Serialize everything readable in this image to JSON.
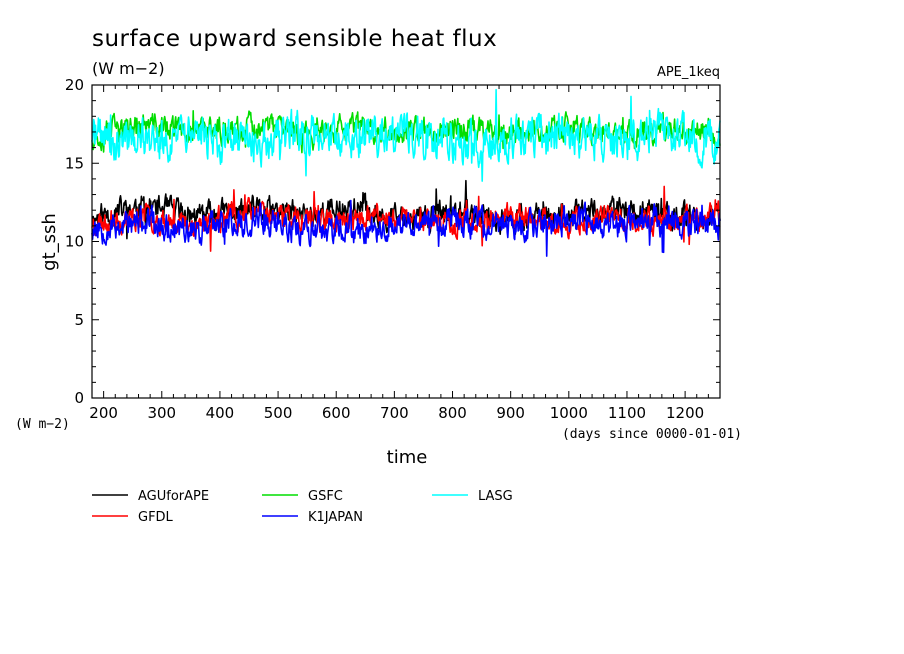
{
  "chart_data": {
    "type": "line",
    "title": "surface upward sensible heat flux",
    "units": "(W m−2)",
    "tag": "APE_1keq",
    "xlabel": "time",
    "xunit": "(days since 0000-01-01)",
    "ylabel": "gt_ssh",
    "yunit": "(W m−2)",
    "xlim": [
      180,
      1260
    ],
    "ylim": [
      0,
      20
    ],
    "xticks": [
      "200",
      "300",
      "400",
      "500",
      "600",
      "700",
      "800",
      "900",
      "1000",
      "1100",
      "1200"
    ],
    "yticks": [
      "0",
      "5",
      "10",
      "15",
      "20"
    ],
    "grid": false,
    "legend_position": "bottom",
    "series": [
      {
        "name": "AGUforAPE",
        "color": "#000000",
        "mean": 11.7,
        "amp": 0.9,
        "seed": 11,
        "points": [
          [
            180,
            11.5
          ],
          [
            270,
            12.3
          ],
          [
            360,
            11.6
          ],
          [
            450,
            12.0
          ],
          [
            540,
            11.7
          ],
          [
            630,
            12.2
          ],
          [
            720,
            11.4
          ],
          [
            810,
            11.9
          ],
          [
            900,
            11.3
          ],
          [
            990,
            11.8
          ],
          [
            1080,
            12.0
          ],
          [
            1170,
            11.6
          ],
          [
            1260,
            11.5
          ]
        ]
      },
      {
        "name": "GFDL",
        "color": "#ff0000",
        "mean": 11.4,
        "amp": 0.85,
        "seed": 23,
        "points": [
          [
            180,
            11.2
          ],
          [
            270,
            11.6
          ],
          [
            360,
            11.1
          ],
          [
            450,
            11.8
          ],
          [
            540,
            11.5
          ],
          [
            630,
            11.3
          ],
          [
            720,
            11.6
          ],
          [
            810,
            11.2
          ],
          [
            900,
            11.7
          ],
          [
            990,
            11.1
          ],
          [
            1080,
            11.5
          ],
          [
            1170,
            11.4
          ],
          [
            1260,
            11.6
          ]
        ]
      },
      {
        "name": "GSFC",
        "color": "#00dd00",
        "mean": 17.1,
        "amp": 0.9,
        "seed": 37,
        "points": [
          [
            180,
            16.8
          ],
          [
            270,
            17.4
          ],
          [
            360,
            17.0
          ],
          [
            450,
            17.3
          ],
          [
            540,
            16.9
          ],
          [
            630,
            17.2
          ],
          [
            720,
            17.0
          ],
          [
            810,
            17.3
          ],
          [
            900,
            17.0
          ],
          [
            990,
            17.2
          ],
          [
            1080,
            16.9
          ],
          [
            1170,
            17.2
          ],
          [
            1260,
            16.9
          ]
        ]
      },
      {
        "name": "K1JAPAN",
        "color": "#0000ff",
        "mean": 11.0,
        "amp": 1.0,
        "seed": 53,
        "points": [
          [
            180,
            10.9
          ],
          [
            270,
            11.2
          ],
          [
            360,
            10.7
          ],
          [
            450,
            11.4
          ],
          [
            540,
            10.8
          ],
          [
            630,
            10.6
          ],
          [
            720,
            11.1
          ],
          [
            810,
            11.3
          ],
          [
            900,
            10.9
          ],
          [
            990,
            11.4
          ],
          [
            1080,
            11.0
          ],
          [
            1170,
            11.3
          ],
          [
            1260,
            11.1
          ]
        ]
      },
      {
        "name": "LASG",
        "color": "#00ffff",
        "mean": 16.6,
        "amp": 1.4,
        "seed": 71,
        "points": [
          [
            180,
            16.8
          ],
          [
            270,
            16.4
          ],
          [
            360,
            16.7
          ],
          [
            450,
            16.2
          ],
          [
            540,
            16.9
          ],
          [
            630,
            16.5
          ],
          [
            720,
            16.8
          ],
          [
            810,
            16.3
          ],
          [
            900,
            16.6
          ],
          [
            990,
            16.8
          ],
          [
            1080,
            16.4
          ],
          [
            1170,
            16.9
          ],
          [
            1260,
            16.3
          ]
        ]
      }
    ]
  }
}
